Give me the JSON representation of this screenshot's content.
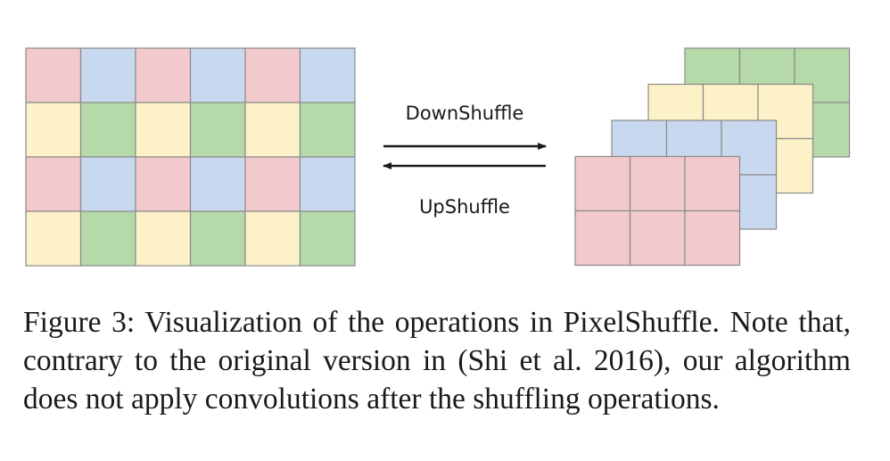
{
  "diagram": {
    "colors": {
      "red": "#f2c9cc",
      "blue": "#c8d8ef",
      "yellow": "#fcf1c7",
      "green": "#b5d9a8",
      "grid_line": "#8a8a8a"
    },
    "left_grid": [
      [
        "red",
        "blue",
        "red",
        "blue",
        "red",
        "blue"
      ],
      [
        "yellow",
        "green",
        "yellow",
        "green",
        "yellow",
        "green"
      ],
      [
        "red",
        "blue",
        "red",
        "blue",
        "red",
        "blue"
      ],
      [
        "yellow",
        "green",
        "yellow",
        "green",
        "yellow",
        "green"
      ]
    ],
    "stack_layers": [
      "green",
      "yellow",
      "blue",
      "red"
    ],
    "down_label": "DownShuffle",
    "up_label": "UpShuffle"
  },
  "caption": "Figure 3: Visualization of the operations in PixelShuffle. Note that, contrary to the original version in (Shi et al. 2016), our algorithm does not apply convolutions after the shuffling operations."
}
